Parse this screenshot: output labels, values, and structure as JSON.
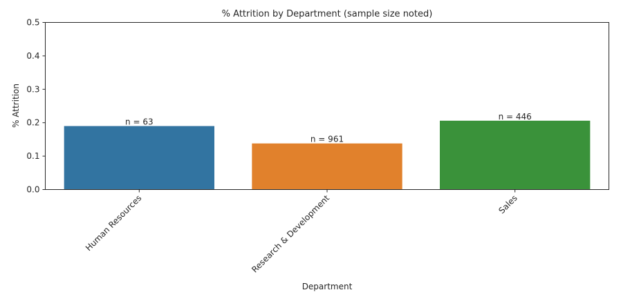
{
  "chart_data": {
    "type": "bar",
    "title": "% Attrition by Department (sample size noted)",
    "xlabel": "Department",
    "ylabel": "% Attrition",
    "categories": [
      "Human Resources",
      "Research & Development",
      "Sales"
    ],
    "values": [
      0.19,
      0.138,
      0.206
    ],
    "data_labels": [
      "n = 63",
      "n = 961",
      "n = 446"
    ],
    "colors": [
      "#3274a1",
      "#e1812c",
      "#3a923a"
    ],
    "ylim": [
      0,
      0.5
    ],
    "yticks": [
      0.0,
      0.1,
      0.2,
      0.3,
      0.4,
      0.5
    ],
    "ytick_labels": [
      "0.0",
      "0.1",
      "0.2",
      "0.3",
      "0.4",
      "0.5"
    ],
    "grid": false,
    "legend": "none"
  }
}
